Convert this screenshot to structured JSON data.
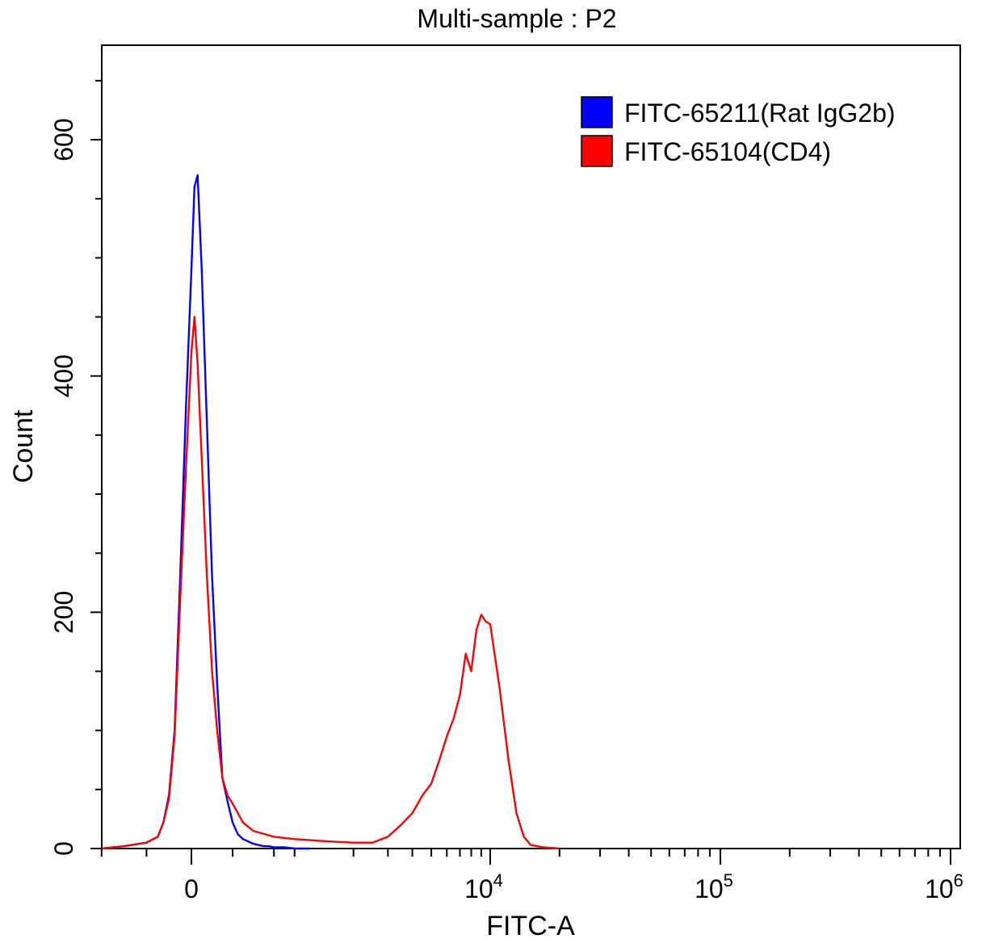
{
  "chart_data": {
    "type": "line",
    "title": "Multi-sample : P2",
    "xlabel": "FITC-A",
    "ylabel": "Count",
    "x_scale": "biexponential",
    "xlim": [
      -800,
      1000000
    ],
    "ylim": [
      0,
      680
    ],
    "grid": false,
    "legend_position": "top-right",
    "x_ticks": [
      {
        "value": 0,
        "base": "0",
        "exp": ""
      },
      {
        "value": 10000,
        "base": "10",
        "exp": "4"
      },
      {
        "value": 100000,
        "base": "10",
        "exp": "5"
      },
      {
        "value": 1000000,
        "base": "10",
        "exp": "6"
      }
    ],
    "y_ticks": [
      {
        "value": 0,
        "label": "0"
      },
      {
        "value": 200,
        "label": "200"
      },
      {
        "value": 400,
        "label": "400"
      },
      {
        "value": 600,
        "label": "600"
      }
    ],
    "series": [
      {
        "name": "FITC-65211(Rat IgG2b)",
        "color": "#0000ff",
        "x": [
          -800,
          -600,
          -400,
          -300,
          -250,
          -200,
          -150,
          -100,
          -50,
          0,
          30,
          60,
          100,
          150,
          200,
          250,
          300,
          350,
          400,
          450,
          500,
          550,
          600,
          650,
          700,
          750,
          800,
          900,
          1000,
          1100,
          1200
        ],
        "y": [
          0,
          2,
          5,
          10,
          22,
          45,
          100,
          230,
          370,
          490,
          560,
          570,
          490,
          360,
          230,
          140,
          60,
          40,
          22,
          12,
          8,
          6,
          4,
          3,
          2,
          2,
          1,
          1,
          0,
          0,
          0
        ]
      },
      {
        "name": "FITC-65104(CD4)",
        "color": "#ff0000",
        "x": [
          -800,
          -600,
          -400,
          -300,
          -250,
          -200,
          -150,
          -100,
          -50,
          0,
          30,
          60,
          100,
          150,
          200,
          250,
          300,
          350,
          400,
          450,
          500,
          600,
          800,
          1000,
          1500,
          2000,
          2500,
          3000,
          3500,
          4000,
          4500,
          5000,
          5500,
          6000,
          6500,
          7000,
          7500,
          8000,
          8500,
          9000,
          9500,
          10000,
          11000,
          12000,
          13000,
          14000,
          15000,
          17000,
          20000
        ],
        "y": [
          0,
          2,
          5,
          10,
          22,
          42,
          95,
          210,
          320,
          420,
          450,
          410,
          330,
          230,
          150,
          100,
          60,
          45,
          38,
          30,
          22,
          15,
          10,
          8,
          6,
          5,
          5,
          10,
          20,
          30,
          45,
          55,
          75,
          95,
          110,
          130,
          165,
          150,
          185,
          198,
          192,
          190,
          135,
          75,
          30,
          10,
          3,
          1,
          0
        ]
      }
    ]
  }
}
